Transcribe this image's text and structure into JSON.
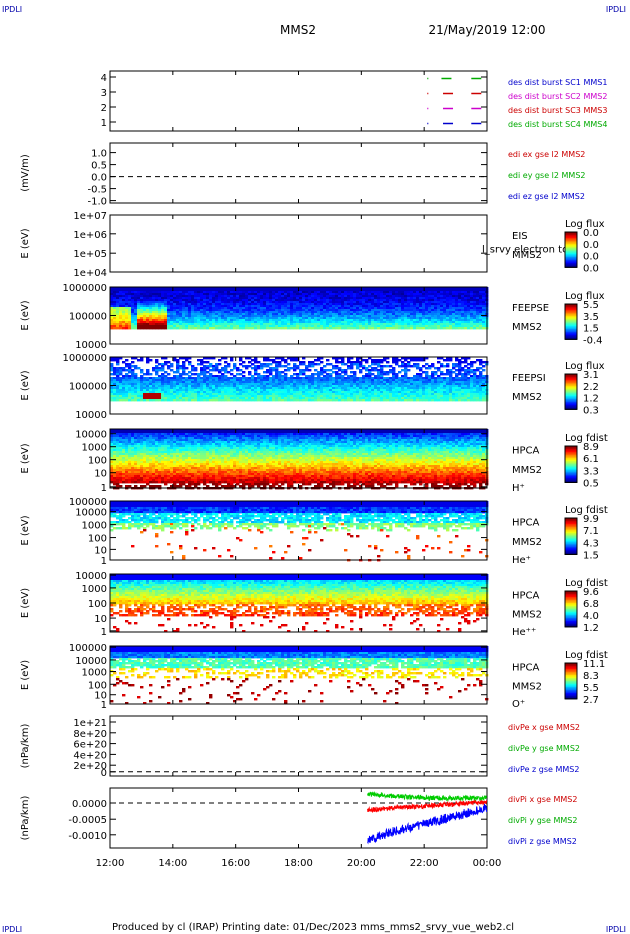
{
  "corner_label": "IPDLI",
  "header": {
    "mission": "MMS2",
    "date": "21/May/2019 12:00"
  },
  "footer": {
    "text": "Produced by cl (IRAP)   Printing date: 01/Dec/2023   mms_mms2_srvy_vue_web2.cl"
  },
  "chart_data": [
    {
      "type": "line",
      "ylim": [
        0.5,
        4.5
      ],
      "y_ticks": [
        "4",
        "3",
        "2",
        "1"
      ],
      "legend": [
        {
          "text": "des dist burst SC1 MMS1",
          "color": "#0000cc"
        },
        {
          "text": "des dist burst SC2 MMS2",
          "color": "#cc00cc"
        },
        {
          "text": "des dist burst SC3 MMS3",
          "color": "#cc0000"
        },
        {
          "text": "des dist burst SC4 MMS4",
          "color": "#00aa00"
        }
      ]
    },
    {
      "type": "line",
      "ylabel": "(mV/m)",
      "ylim": [
        -1.2,
        1.3
      ],
      "y_ticks": [
        "1.0",
        "0.5",
        "0.0",
        "-0.5",
        "-1.0"
      ],
      "legend": [
        {
          "text": "edi ex gse l2 MMS2",
          "color": "#cc0000"
        },
        {
          "text": "edi ey gse l2 MMS2",
          "color": "#00aa00"
        },
        {
          "text": "edi ez gse l2 MMS2",
          "color": "#0000cc"
        }
      ]
    },
    {
      "type": "heatmap",
      "ylabel": "E (eV)",
      "y_ticks": [
        "1e+07",
        "1e+06",
        "1e+05",
        "1e+04"
      ],
      "side_labels": [
        "EIS",
        "MMS2"
      ],
      "overlay_text": "l_srvy electron to",
      "colorbar": {
        "title": "Log flux",
        "values": [
          "0.0",
          "0.0",
          "0.0",
          "0.0"
        ]
      }
    },
    {
      "type": "heatmap",
      "ylabel": "E (eV)",
      "y_ticks": [
        "1000000",
        "100000",
        "10000"
      ],
      "side_labels": [
        "FEEPSE",
        "MMS2"
      ],
      "colorbar": {
        "title": "Log flux",
        "values": [
          "5.5",
          "3.5",
          "1.5",
          "-0.4"
        ]
      }
    },
    {
      "type": "heatmap",
      "ylabel": "E (eV)",
      "y_ticks": [
        "1000000",
        "100000",
        "10000"
      ],
      "side_labels": [
        "FEEPSI",
        "MMS2"
      ],
      "colorbar": {
        "title": "Log flux",
        "values": [
          "3.1",
          "2.2",
          "1.2",
          "0.3"
        ]
      }
    },
    {
      "type": "heatmap",
      "ylabel": "E (eV)",
      "y_ticks": [
        "10000",
        "1000",
        "100",
        "10",
        "1"
      ],
      "side_labels": [
        "HPCA",
        "MMS2",
        "H⁺"
      ],
      "colorbar": {
        "title": "Log fdist",
        "values": [
          "8.9",
          "6.1",
          "3.3",
          "0.5"
        ]
      }
    },
    {
      "type": "heatmap",
      "ylabel": "E (eV)",
      "y_ticks": [
        "100000",
        "10000",
        "1000",
        "100",
        "10",
        "1"
      ],
      "side_labels": [
        "HPCA",
        "MMS2",
        "He⁺"
      ],
      "colorbar": {
        "title": "Log fdist",
        "values": [
          "9.9",
          "7.1",
          "4.3",
          "1.5"
        ]
      }
    },
    {
      "type": "heatmap",
      "ylabel": "E (eV)",
      "y_ticks": [
        "10000",
        "1000",
        "100",
        "10",
        "1"
      ],
      "side_labels": [
        "HPCA",
        "MMS2",
        "He⁺⁺"
      ],
      "colorbar": {
        "title": "Log fdist",
        "values": [
          "9.6",
          "6.8",
          "4.0",
          "1.2"
        ]
      }
    },
    {
      "type": "heatmap",
      "ylabel": "E (eV)",
      "y_ticks": [
        "100000",
        "10000",
        "1000",
        "100",
        "10",
        "1"
      ],
      "side_labels": [
        "HPCA",
        "MMS2",
        "O⁺"
      ],
      "colorbar": {
        "title": "Log fdist",
        "values": [
          "11.1",
          "8.3",
          "5.5",
          "2.7"
        ]
      }
    },
    {
      "type": "line",
      "ylabel": "(nPa/km)",
      "ylim": [
        -3e+19,
        1.1e+21
      ],
      "y_ticks": [
        "1e+21",
        "8e+20",
        "6e+20",
        "4e+20",
        "2e+20",
        "0"
      ],
      "legend": [
        {
          "text": "divPe x gse MMS2",
          "color": "#cc0000"
        },
        {
          "text": "divPe y gse MMS2",
          "color": "#00aa00"
        },
        {
          "text": "divPe z gse MMS2",
          "color": "#0000cc"
        }
      ]
    },
    {
      "type": "line",
      "ylabel": "(nPa/km)",
      "ylim": [
        -0.0013,
        0.0002
      ],
      "y_ticks": [
        "0.0000",
        "-0.0005",
        "-0.0010"
      ],
      "legend": [
        {
          "text": "divPi x gse MMS2",
          "color": "#cc0000"
        },
        {
          "text": "divPi y gse MMS2",
          "color": "#00aa00"
        },
        {
          "text": "divPi z gse MMS2",
          "color": "#0000cc"
        }
      ],
      "series": [
        {
          "name": "divPi x gse MMS2",
          "x_hours": [
            20.2,
            21,
            22,
            23,
            24
          ],
          "values": [
            -0.00035,
            -0.0003,
            -0.00025,
            -0.0002,
            -0.00015
          ]
        },
        {
          "name": "divPi y gse MMS2",
          "x_hours": [
            20.2,
            21,
            22,
            23,
            24
          ],
          "values": [
            5e-05,
            0.0,
            -5e-05,
            -5e-05,
            -5e-05
          ]
        },
        {
          "name": "divPi z gse MMS2",
          "x_hours": [
            20.2,
            21,
            22,
            23,
            24
          ],
          "values": [
            -0.0011,
            -0.0009,
            -0.0007,
            -0.0005,
            -0.0003
          ]
        }
      ]
    }
  ],
  "x_axis": {
    "tick_labels": [
      "12:00",
      "14:00",
      "16:00",
      "18:00",
      "20:00",
      "22:00",
      "00:00"
    ],
    "xlim_hours": [
      12,
      24
    ]
  }
}
